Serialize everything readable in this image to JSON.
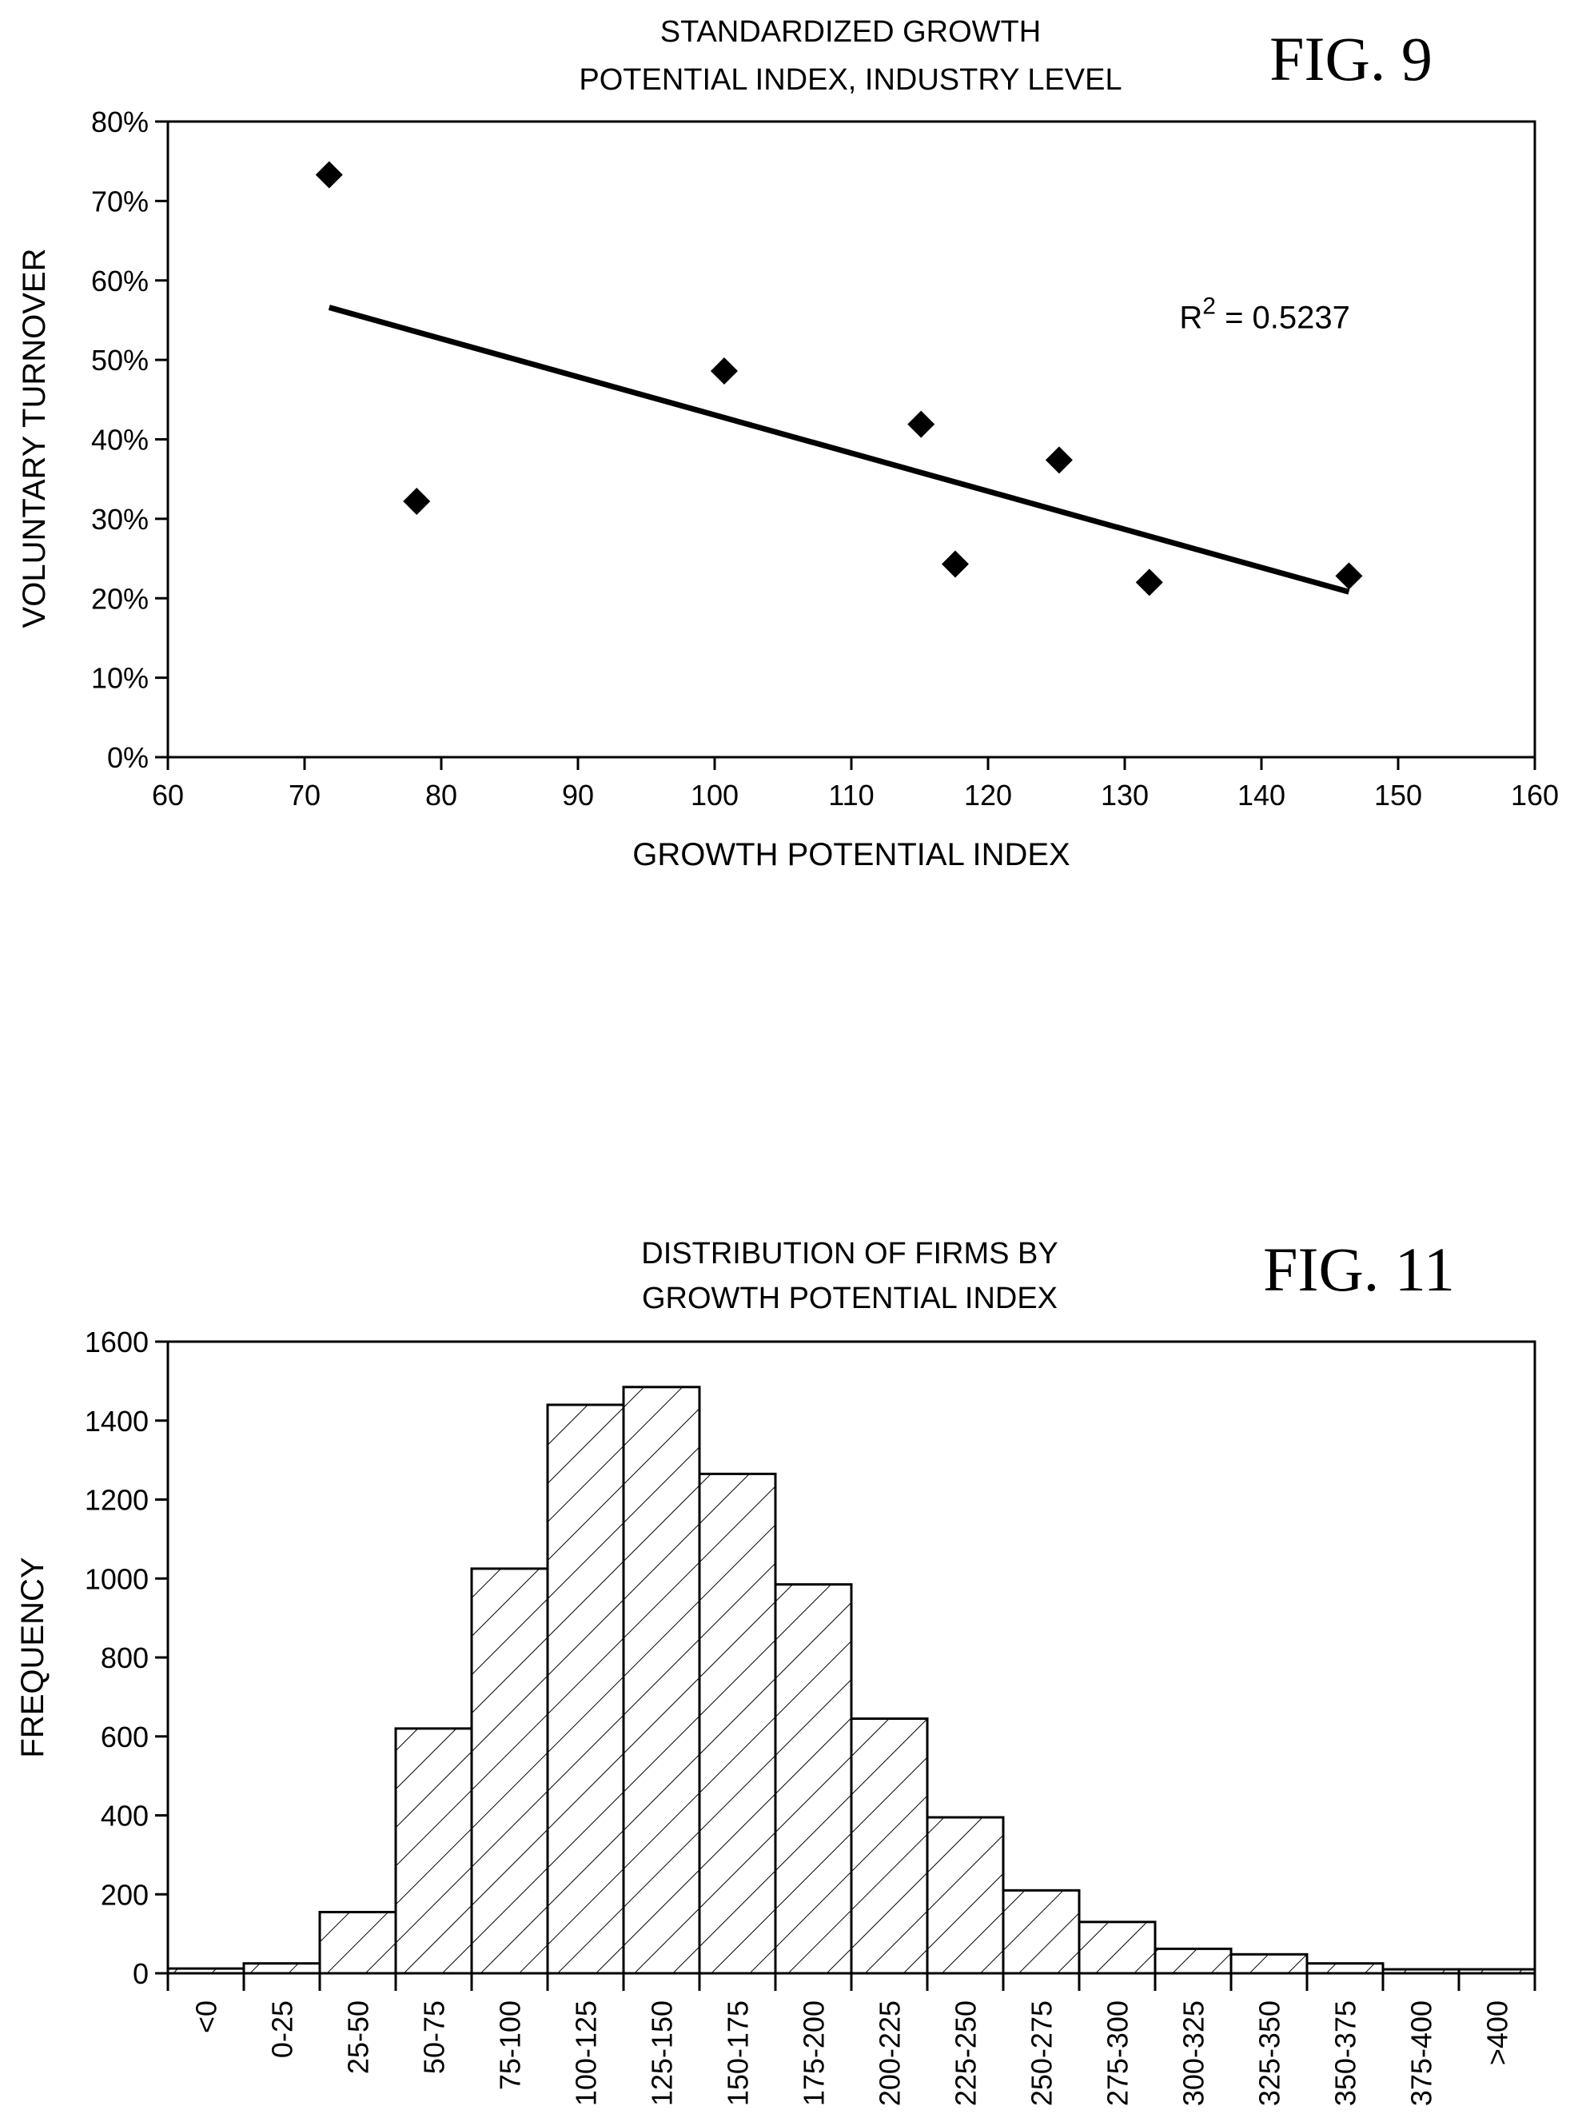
{
  "chart_data": [
    {
      "type": "scatter",
      "figure_label": "FIG. 9",
      "title": [
        "STANDARDIZED GROWTH",
        "POTENTIAL INDEX, INDUSTRY LEVEL"
      ],
      "xlabel": "GROWTH POTENTIAL INDEX",
      "ylabel": "VOLUNTARY TURNOVER",
      "xlim": [
        60,
        160
      ],
      "ylim": [
        0,
        0.8
      ],
      "x_ticks": [
        60,
        70,
        80,
        90,
        100,
        110,
        120,
        130,
        140,
        150,
        160
      ],
      "x_tick_labels": [
        "60",
        "70",
        "80",
        "90",
        "100",
        "110",
        "120",
        "130",
        "140",
        "150",
        "160"
      ],
      "y_ticks": [
        0,
        0.1,
        0.2,
        0.3,
        0.4,
        0.5,
        0.6,
        0.7,
        0.8
      ],
      "y_tick_labels": [
        "0%",
        "10%",
        "20%",
        "30%",
        "40%",
        "50%",
        "60%",
        "70%",
        "80%"
      ],
      "points": [
        {
          "x": 71.8,
          "y": 0.733
        },
        {
          "x": 78.2,
          "y": 0.322
        },
        {
          "x": 100.7,
          "y": 0.486
        },
        {
          "x": 115.1,
          "y": 0.419
        },
        {
          "x": 117.6,
          "y": 0.243
        },
        {
          "x": 125.2,
          "y": 0.374
        },
        {
          "x": 131.8,
          "y": 0.22
        },
        {
          "x": 146.4,
          "y": 0.228
        }
      ],
      "trendline": {
        "x": [
          71.8,
          146.4
        ],
        "y": [
          0.566,
          0.208
        ]
      },
      "annotation": {
        "base": "R",
        "sup": "2",
        "rest": " = 0.5237",
        "x": 134,
        "y": 0.54
      },
      "grid": false
    },
    {
      "type": "bar",
      "figure_label": "FIG. 11",
      "title": [
        "DISTRIBUTION OF FIRMS BY",
        "GROWTH POTENTIAL INDEX"
      ],
      "xlabel": "",
      "ylabel": "FREQUENCY",
      "ylim": [
        0,
        1600
      ],
      "y_ticks": [
        0,
        200,
        400,
        600,
        800,
        1000,
        1200,
        1400,
        1600
      ],
      "y_tick_labels": [
        "0",
        "200",
        "400",
        "600",
        "800",
        "1000",
        "1200",
        "1400",
        "1600"
      ],
      "categories": [
        "<0",
        "0-25",
        "25-50",
        "50-75",
        "75-100",
        "100-125",
        "125-150",
        "150-175",
        "175-200",
        "200-225",
        "225-250",
        "250-275",
        "275-300",
        "300-325",
        "325-350",
        "350-375",
        "375-400",
        ">400"
      ],
      "values": [
        12,
        25,
        155,
        620,
        1025,
        1440,
        1485,
        1265,
        985,
        645,
        395,
        210,
        130,
        62,
        48,
        25,
        10,
        10
      ],
      "fill_pattern": "diagonal-hatch",
      "grid": false
    }
  ]
}
